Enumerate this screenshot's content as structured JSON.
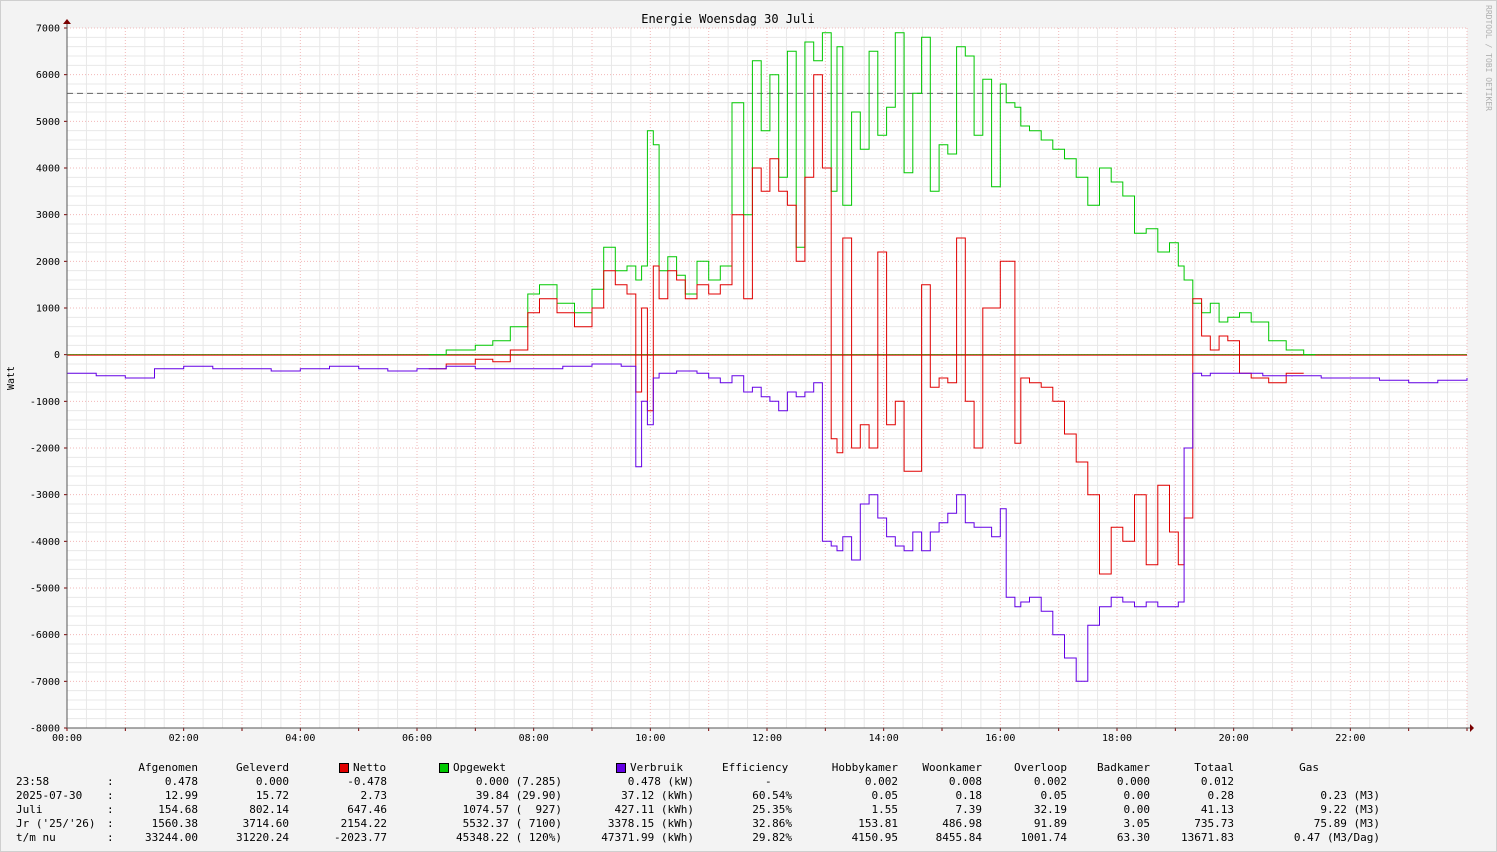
{
  "chart_data": {
    "type": "line",
    "title": "Energie Woensdag  30 Juli",
    "ylabel": "Watt",
    "watermark": "RRDTOOL / TOBI OETIKER",
    "ylim": [
      -8000,
      7000
    ],
    "xlim_hours": [
      0,
      24
    ],
    "yticks": [
      "7000",
      "6000",
      "5000",
      "4000",
      "3000",
      "2000",
      "1000",
      "0",
      "-1000",
      "-2000",
      "-3000",
      "-4000",
      "-5000",
      "-6000",
      "-7000",
      "-8000"
    ],
    "xticks": [
      "00:00",
      "02:00",
      "04:00",
      "06:00",
      "08:00",
      "10:00",
      "12:00",
      "14:00",
      "16:00",
      "18:00",
      "20:00",
      "22:00"
    ],
    "grid": true,
    "reference_line": 5600,
    "series": [
      {
        "name": "Netto",
        "color": "#e00000",
        "x": [
          6.2,
          6.5,
          7.0,
          7.3,
          7.6,
          7.9,
          8.1,
          8.4,
          8.7,
          9.0,
          9.2,
          9.4,
          9.6,
          9.75,
          9.85,
          9.95,
          10.05,
          10.15,
          10.3,
          10.45,
          10.6,
          10.8,
          11.0,
          11.2,
          11.4,
          11.6,
          11.75,
          11.9,
          12.05,
          12.2,
          12.35,
          12.5,
          12.65,
          12.8,
          12.95,
          13.1,
          13.2,
          13.3,
          13.45,
          13.6,
          13.75,
          13.9,
          14.05,
          14.2,
          14.35,
          14.5,
          14.65,
          14.8,
          14.95,
          15.1,
          15.25,
          15.4,
          15.55,
          15.7,
          15.85,
          16.0,
          16.1,
          16.25,
          16.35,
          16.5,
          16.7,
          16.9,
          17.1,
          17.3,
          17.5,
          17.7,
          17.9,
          18.1,
          18.3,
          18.5,
          18.7,
          18.9,
          19.05,
          19.15,
          19.3,
          19.45,
          19.6,
          19.75,
          19.9,
          20.1,
          20.3,
          20.6,
          20.9,
          21.2
        ],
        "y": [
          -300,
          -200,
          -100,
          -150,
          100,
          900,
          1200,
          900,
          600,
          1000,
          1800,
          1500,
          1300,
          -800,
          1000,
          -1200,
          1900,
          1200,
          1800,
          1600,
          1200,
          1500,
          1300,
          1500,
          3000,
          1200,
          4000,
          3500,
          4200,
          3500,
          3200,
          2000,
          3800,
          6000,
          4000,
          -1800,
          -2100,
          2500,
          -2000,
          -1500,
          -2000,
          2200,
          -1500,
          -1000,
          -2500,
          -2500,
          1500,
          -700,
          -500,
          -600,
          2500,
          -1000,
          -2000,
          1000,
          1000,
          2000,
          2000,
          -1900,
          -500,
          -600,
          -700,
          -1000,
          -1700,
          -2300,
          -3000,
          -4700,
          -3700,
          -4000,
          -3000,
          -4500,
          -2800,
          -3800,
          -4500,
          -3500,
          1200,
          400,
          100,
          400,
          300,
          -400,
          -500,
          -600,
          -400,
          -400
        ]
      },
      {
        "name": "Opgewekt",
        "color": "#00c800",
        "x": [
          6.2,
          6.5,
          7.0,
          7.3,
          7.6,
          7.9,
          8.1,
          8.4,
          8.7,
          9.0,
          9.2,
          9.4,
          9.6,
          9.75,
          9.85,
          9.95,
          10.05,
          10.15,
          10.3,
          10.45,
          10.6,
          10.8,
          11.0,
          11.2,
          11.4,
          11.6,
          11.75,
          11.9,
          12.05,
          12.2,
          12.35,
          12.5,
          12.65,
          12.8,
          12.95,
          13.1,
          13.2,
          13.3,
          13.45,
          13.6,
          13.75,
          13.9,
          14.05,
          14.2,
          14.35,
          14.5,
          14.65,
          14.8,
          14.95,
          15.1,
          15.25,
          15.4,
          15.55,
          15.7,
          15.85,
          16.0,
          16.1,
          16.25,
          16.35,
          16.5,
          16.7,
          16.9,
          17.1,
          17.3,
          17.5,
          17.7,
          17.9,
          18.1,
          18.3,
          18.5,
          18.7,
          18.9,
          19.05,
          19.15,
          19.3,
          19.45,
          19.6,
          19.75,
          19.9,
          20.1,
          20.3,
          20.6,
          20.9,
          21.2,
          21.4
        ],
        "y": [
          0,
          100,
          200,
          300,
          600,
          1300,
          1500,
          1100,
          900,
          1400,
          2300,
          1800,
          1900,
          1600,
          1900,
          4800,
          4500,
          1800,
          2100,
          1700,
          1300,
          2000,
          1600,
          1900,
          5400,
          3000,
          6300,
          4800,
          6000,
          3800,
          6500,
          2300,
          6700,
          6300,
          6900,
          3500,
          6600,
          3200,
          5200,
          4400,
          6500,
          4700,
          5300,
          6900,
          3900,
          5600,
          6800,
          3500,
          4500,
          4300,
          6600,
          6400,
          4700,
          5900,
          3600,
          5800,
          5400,
          5300,
          4900,
          4800,
          4600,
          4400,
          4200,
          3800,
          3200,
          4000,
          3700,
          3400,
          2600,
          2700,
          2200,
          2400,
          1900,
          1600,
          1100,
          900,
          1100,
          700,
          800,
          900,
          700,
          300,
          100,
          0,
          0
        ]
      },
      {
        "name": "Verbruik",
        "color": "#6400e6",
        "x": [
          0,
          0.5,
          1.0,
          1.5,
          2.0,
          2.5,
          3.0,
          3.5,
          4.0,
          4.5,
          5.0,
          5.5,
          6.0,
          6.5,
          7.0,
          7.5,
          8.0,
          8.5,
          9.0,
          9.5,
          9.75,
          9.85,
          9.95,
          10.05,
          10.15,
          10.3,
          10.45,
          10.6,
          10.8,
          11.0,
          11.2,
          11.4,
          11.6,
          11.75,
          11.9,
          12.05,
          12.2,
          12.35,
          12.5,
          12.65,
          12.8,
          12.95,
          13.1,
          13.2,
          13.3,
          13.45,
          13.6,
          13.75,
          13.9,
          14.05,
          14.2,
          14.35,
          14.5,
          14.65,
          14.8,
          14.95,
          15.1,
          15.25,
          15.4,
          15.55,
          15.7,
          15.85,
          16.0,
          16.1,
          16.25,
          16.35,
          16.5,
          16.7,
          16.9,
          17.1,
          17.3,
          17.5,
          17.7,
          17.9,
          18.1,
          18.3,
          18.5,
          18.7,
          18.9,
          19.05,
          19.15,
          19.3,
          19.45,
          19.6,
          20.0,
          20.5,
          21.0,
          21.5,
          22.0,
          22.5,
          23.0,
          23.5,
          24.0
        ],
        "y": [
          -400,
          -450,
          -500,
          -300,
          -250,
          -300,
          -300,
          -350,
          -300,
          -250,
          -300,
          -350,
          -300,
          -250,
          -300,
          -300,
          -300,
          -250,
          -200,
          -250,
          -2400,
          -1000,
          -1500,
          -500,
          -400,
          -400,
          -350,
          -350,
          -400,
          -500,
          -600,
          -450,
          -800,
          -700,
          -900,
          -1000,
          -1200,
          -800,
          -900,
          -800,
          -600,
          -4000,
          -4100,
          -4200,
          -3900,
          -4400,
          -3200,
          -3000,
          -3500,
          -3900,
          -4100,
          -4200,
          -3800,
          -4200,
          -3800,
          -3600,
          -3400,
          -3000,
          -3600,
          -3700,
          -3700,
          -3900,
          -3300,
          -5200,
          -5400,
          -5300,
          -5200,
          -5500,
          -6000,
          -6500,
          -7000,
          -5800,
          -5400,
          -5200,
          -5300,
          -5400,
          -5300,
          -5400,
          -5400,
          -5300,
          -2000,
          -400,
          -450,
          -400,
          -400,
          -450,
          -450,
          -500,
          -500,
          -550,
          -600,
          -550,
          -500
        ]
      }
    ],
    "legend_entries": [
      "Netto",
      "Opgewekt",
      "Verbruik"
    ]
  },
  "table": {
    "headers": {
      "afgenomen": "Afgenomen",
      "geleverd": "Geleverd",
      "netto": "Netto",
      "opgewekt": "Opgewekt",
      "verbruik": "Verbruik",
      "efficiency": "Efficiency",
      "hobbykamer": "Hobbykamer",
      "woonkamer": "Woonkamer",
      "overloop": "Overloop",
      "badkamer": "Badkamer",
      "totaal": "Totaal",
      "gas": "Gas"
    },
    "rows": [
      {
        "label": "23:58",
        "sep": ":",
        "afgenomen": "0.478",
        "geleverd": "0.000",
        "netto": "-0.478",
        "opgewekt": "0.000 (7.285)",
        "verbruik": "0.478 (kW)",
        "efficiency": "-",
        "hobbykamer": "0.002",
        "woonkamer": "0.008",
        "overloop": "0.002",
        "badkamer": "0.000",
        "totaal": "0.012",
        "gas": ""
      },
      {
        "label": "2025-07-30",
        "sep": ":",
        "afgenomen": "12.99",
        "geleverd": "15.72",
        "netto": "2.73",
        "opgewekt": "39.84 (29.90)",
        "verbruik": "37.12 (kWh)",
        "efficiency": "60.54%",
        "hobbykamer": "0.05",
        "woonkamer": "0.18",
        "overloop": "0.05",
        "badkamer": "0.00",
        "totaal": "0.28",
        "gas": "0.23 (M3)"
      },
      {
        "label": "Juli",
        "sep": ":",
        "afgenomen": "154.68",
        "geleverd": "802.14",
        "netto": "647.46",
        "opgewekt": "1074.57 (  927)",
        "verbruik": "427.11 (kWh)",
        "efficiency": "25.35%",
        "hobbykamer": "1.55",
        "woonkamer": "7.39",
        "overloop": "32.19",
        "badkamer": "0.00",
        "totaal": "41.13",
        "gas": "9.22 (M3)"
      },
      {
        "label": "Jr ('25/'26)",
        "sep": ":",
        "afgenomen": "1560.38",
        "geleverd": "3714.60",
        "netto": "2154.22",
        "opgewekt": "5532.37 ( 7100)",
        "verbruik": "3378.15 (kWh)",
        "efficiency": "32.86%",
        "hobbykamer": "153.81",
        "woonkamer": "486.98",
        "overloop": "91.89",
        "badkamer": "3.05",
        "totaal": "735.73",
        "gas": "75.89 (M3)"
      },
      {
        "label": "t/m nu",
        "sep": ":",
        "afgenomen": "33244.00",
        "geleverd": "31220.24",
        "netto": "-2023.77",
        "opgewekt": "45348.22 ( 120%)",
        "verbruik": "47371.99 (kWh)",
        "efficiency": "29.82%",
        "hobbykamer": "4150.95",
        "woonkamer": "8455.84",
        "overloop": "1001.74",
        "badkamer": "63.30",
        "totaal": "13671.83",
        "gas": "0.47 (M3/Dag)"
      }
    ]
  }
}
